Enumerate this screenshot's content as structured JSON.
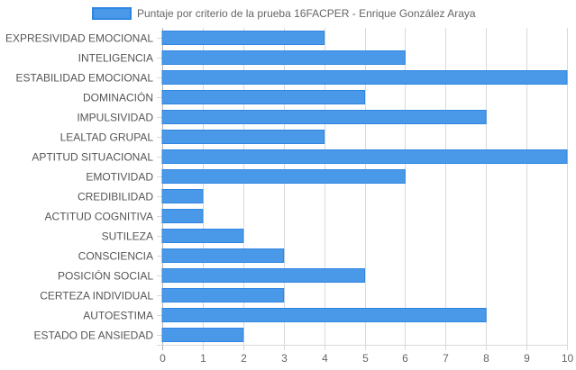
{
  "chart_data": {
    "type": "bar",
    "orientation": "horizontal",
    "title": "",
    "xlabel": "",
    "ylabel": "",
    "categories": [
      "EXPRESIVIDAD EMOCIONAL",
      "INTELIGENCIA",
      "ESTABILIDAD EMOCIONAL",
      "DOMINACIÓN",
      "IMPULSIVIDAD",
      "LEALTAD GRUPAL",
      "APTITUD SITUACIONAL",
      "EMOTIVIDAD",
      "CREDIBILIDAD",
      "ACTITUD COGNITIVA",
      "SUTILEZA",
      "CONSCIENCIA",
      "POSICIÓN SOCIAL",
      "CERTEZA INDIVIDUAL",
      "AUTOESTIMA",
      "ESTADO DE ANSIEDAD"
    ],
    "series": [
      {
        "name": "Puntaje por criterio de la prueba 16FACPER - Enrique González Araya",
        "values": [
          4,
          6,
          10,
          5,
          8,
          4,
          10,
          6,
          1,
          1,
          2,
          3,
          5,
          3,
          8,
          2
        ],
        "color": "#4a98e8",
        "border_color": "#2f86e2"
      }
    ],
    "xlim": [
      0,
      10
    ],
    "x_ticks": [
      "0",
      "1",
      "2",
      "3",
      "4",
      "5",
      "6",
      "7",
      "8",
      "9",
      "10"
    ],
    "grid": true,
    "legend_position": "top"
  }
}
